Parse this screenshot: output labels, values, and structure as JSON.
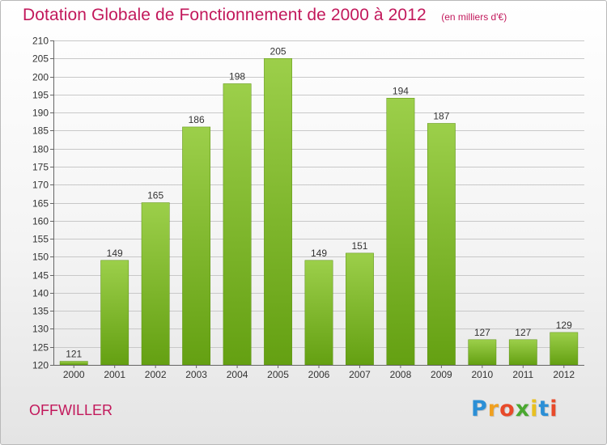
{
  "header": {
    "title": "Dotation Globale de Fonctionnement de 2000 à 2012",
    "subtitle": "(en milliers d'€)"
  },
  "footer": {
    "commune": "OFFWILLER",
    "logo": {
      "letters": [
        "P",
        "r",
        "o",
        "x",
        "i",
        "t",
        "i"
      ],
      "colors": [
        "#2b8fd6",
        "#f0a020",
        "#e84a2a",
        "#4aa830",
        "#e8c020",
        "#2b8fd6",
        "#e84a2a"
      ]
    }
  },
  "chart_data": {
    "type": "bar",
    "title": "Dotation Globale de Fonctionnement de 2000 à 2012",
    "subtitle": "(en milliers d'€)",
    "categories": [
      "2000",
      "2001",
      "2002",
      "2003",
      "2004",
      "2005",
      "2006",
      "2007",
      "2008",
      "2009",
      "2010",
      "2011",
      "2012"
    ],
    "values": [
      121,
      149,
      165,
      186,
      198,
      205,
      149,
      151,
      194,
      187,
      127,
      127,
      129
    ],
    "ylim": [
      120,
      210
    ],
    "yticks": [
      120,
      125,
      130,
      135,
      140,
      145,
      150,
      155,
      160,
      165,
      170,
      175,
      180,
      185,
      190,
      195,
      200,
      205,
      210
    ],
    "grid": true,
    "data_labels": true,
    "colors": {
      "bar_top": "#9ccf4a",
      "bar_bottom": "#64a012",
      "grid": "#c8c8c8",
      "text": "#333333"
    }
  }
}
